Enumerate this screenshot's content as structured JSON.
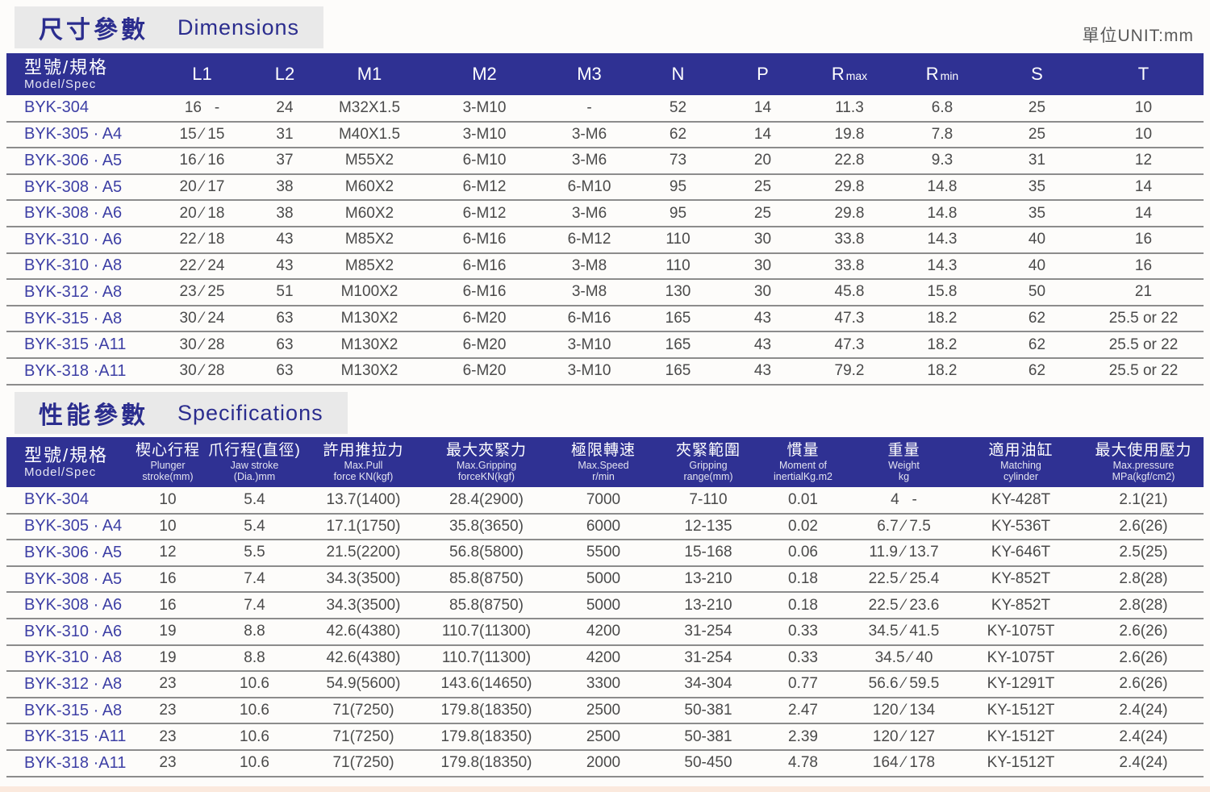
{
  "page": {
    "unit_label": "單位UNIT:mm",
    "colors": {
      "header_navy": "#2f3193",
      "title_band_bg": "#e9e9e9",
      "title_text_blue": "#2b2d8e",
      "model_text_blue": "#3d3fa5",
      "data_text_gray": "#4a4a4a",
      "row_line_gray": "#8c8c8c",
      "footer_pink": "#fbe9dd"
    }
  },
  "dimensions": {
    "title_zh": "尺寸參數",
    "title_en": "Dimensions",
    "model_header": {
      "zh": "型號/規格",
      "en": "Model/Spec"
    },
    "columns": [
      {
        "label": "L1"
      },
      {
        "label": "L2"
      },
      {
        "label": "M1"
      },
      {
        "label": "M2"
      },
      {
        "label": "M3"
      },
      {
        "label": "N"
      },
      {
        "label": "P"
      },
      {
        "label": "R",
        "sub": "max"
      },
      {
        "label": "R",
        "sub": "min"
      },
      {
        "label": "S"
      },
      {
        "label": "T"
      }
    ],
    "rows": [
      [
        "BYK-304",
        "16   -",
        "24",
        "M32X1.5",
        "3-M10",
        "-",
        "52",
        "14",
        "11.3",
        "6.8",
        "25",
        "10"
      ],
      [
        "BYK-305 · A4",
        "15 ⁄ 15",
        "31",
        "M40X1.5",
        "3-M10",
        "3-M6",
        "62",
        "14",
        "19.8",
        "7.8",
        "25",
        "10"
      ],
      [
        "BYK-306 · A5",
        "16 ⁄ 16",
        "37",
        "M55X2",
        "6-M10",
        "3-M6",
        "73",
        "20",
        "22.8",
        "9.3",
        "31",
        "12"
      ],
      [
        "BYK-308 · A5",
        "20 ⁄ 17",
        "38",
        "M60X2",
        "6-M12",
        "6-M10",
        "95",
        "25",
        "29.8",
        "14.8",
        "35",
        "14"
      ],
      [
        "BYK-308 · A6",
        "20 ⁄ 18",
        "38",
        "M60X2",
        "6-M12",
        "3-M6",
        "95",
        "25",
        "29.8",
        "14.8",
        "35",
        "14"
      ],
      [
        "BYK-310 · A6",
        "22 ⁄ 18",
        "43",
        "M85X2",
        "6-M16",
        "6-M12",
        "110",
        "30",
        "33.8",
        "14.3",
        "40",
        "16"
      ],
      [
        "BYK-310 · A8",
        "22 ⁄ 24",
        "43",
        "M85X2",
        "6-M16",
        "3-M8",
        "110",
        "30",
        "33.8",
        "14.3",
        "40",
        "16"
      ],
      [
        "BYK-312 · A8",
        "23 ⁄ 25",
        "51",
        "M100X2",
        "6-M16",
        "3-M8",
        "130",
        "30",
        "45.8",
        "15.8",
        "50",
        "21"
      ],
      [
        "BYK-315 · A8",
        "30 ⁄ 24",
        "63",
        "M130X2",
        "6-M20",
        "6-M16",
        "165",
        "43",
        "47.3",
        "18.2",
        "62",
        "25.5 or 22"
      ],
      [
        "BYK-315 ·A11",
        "30 ⁄ 28",
        "63",
        "M130X2",
        "6-M20",
        "3-M10",
        "165",
        "43",
        "47.3",
        "18.2",
        "62",
        "25.5 or 22"
      ],
      [
        "BYK-318 ·A11",
        "30 ⁄ 28",
        "63",
        "M130X2",
        "6-M20",
        "3-M10",
        "165",
        "43",
        "79.2",
        "18.2",
        "62",
        "25.5 or 22"
      ]
    ]
  },
  "specifications": {
    "title_zh": "性能參數",
    "title_en": "Specifications",
    "model_header": {
      "zh": "型號/規格",
      "en": "Model/Spec"
    },
    "columns": [
      {
        "zh": "楔心行程",
        "en1": "Plunger",
        "en2": "stroke(mm)"
      },
      {
        "zh": "爪行程(直徑)",
        "en1": "Jaw stroke",
        "en2": "(Dia.)mm"
      },
      {
        "zh": "許用推拉力",
        "en1": "Max.Pull",
        "en2": "force KN(kgf)"
      },
      {
        "zh": "最大夾緊力",
        "en1": "Max.Gripping",
        "en2": "forceKN(kgf)"
      },
      {
        "zh": "極限轉速",
        "en1": "Max.Speed",
        "en2": "r/min"
      },
      {
        "zh": "夾緊範圍",
        "en1": "Gripping",
        "en2": "range(mm)"
      },
      {
        "zh": "慣量",
        "en1": "Moment of",
        "en2": "inertialKg.m2"
      },
      {
        "zh": "重量",
        "en1": "Weight",
        "en2": "kg"
      },
      {
        "zh": "適用油缸",
        "en1": "Matching",
        "en2": "cylinder"
      },
      {
        "zh": "最大使用壓力",
        "en1": "Max.pressure",
        "en2": "MPa(kgf/cm2)"
      }
    ],
    "rows": [
      [
        "BYK-304",
        "10",
        "5.4",
        "13.7(1400)",
        "28.4(2900)",
        "7000",
        "7-110",
        "0.01",
        "4   -",
        "KY-428T",
        "2.1(21)"
      ],
      [
        "BYK-305 · A4",
        "10",
        "5.4",
        "17.1(1750)",
        "35.8(3650)",
        "6000",
        "12-135",
        "0.02",
        "6.7 ⁄ 7.5",
        "KY-536T",
        "2.6(26)"
      ],
      [
        "BYK-306 · A5",
        "12",
        "5.5",
        "21.5(2200)",
        "56.8(5800)",
        "5500",
        "15-168",
        "0.06",
        "11.9 ⁄ 13.7",
        "KY-646T",
        "2.5(25)"
      ],
      [
        "BYK-308 · A5",
        "16",
        "7.4",
        "34.3(3500)",
        "85.8(8750)",
        "5000",
        "13-210",
        "0.18",
        "22.5 ⁄ 25.4",
        "KY-852T",
        "2.8(28)"
      ],
      [
        "BYK-308 · A6",
        "16",
        "7.4",
        "34.3(3500)",
        "85.8(8750)",
        "5000",
        "13-210",
        "0.18",
        "22.5 ⁄ 23.6",
        "KY-852T",
        "2.8(28)"
      ],
      [
        "BYK-310 · A6",
        "19",
        "8.8",
        "42.6(4380)",
        "110.7(11300)",
        "4200",
        "31-254",
        "0.33",
        "34.5 ⁄ 41.5",
        "KY-1075T",
        "2.6(26)"
      ],
      [
        "BYK-310 · A8",
        "19",
        "8.8",
        "42.6(4380)",
        "110.7(11300)",
        "4200",
        "31-254",
        "0.33",
        "34.5 ⁄ 40",
        "KY-1075T",
        "2.6(26)"
      ],
      [
        "BYK-312 · A8",
        "23",
        "10.6",
        "54.9(5600)",
        "143.6(14650)",
        "3300",
        "34-304",
        "0.77",
        "56.6 ⁄ 59.5",
        "KY-1291T",
        "2.6(26)"
      ],
      [
        "BYK-315 · A8",
        "23",
        "10.6",
        "71(7250)",
        "179.8(18350)",
        "2500",
        "50-381",
        "2.47",
        "120 ⁄ 134",
        "KY-1512T",
        "2.4(24)"
      ],
      [
        "BYK-315 ·A11",
        "23",
        "10.6",
        "71(7250)",
        "179.8(18350)",
        "2500",
        "50-381",
        "2.39",
        "120 ⁄ 127",
        "KY-1512T",
        "2.4(24)"
      ],
      [
        "BYK-318 ·A11",
        "23",
        "10.6",
        "71(7250)",
        "179.8(18350)",
        "2000",
        "50-450",
        "4.78",
        "164 ⁄ 178",
        "KY-1512T",
        "2.4(24)"
      ]
    ]
  }
}
